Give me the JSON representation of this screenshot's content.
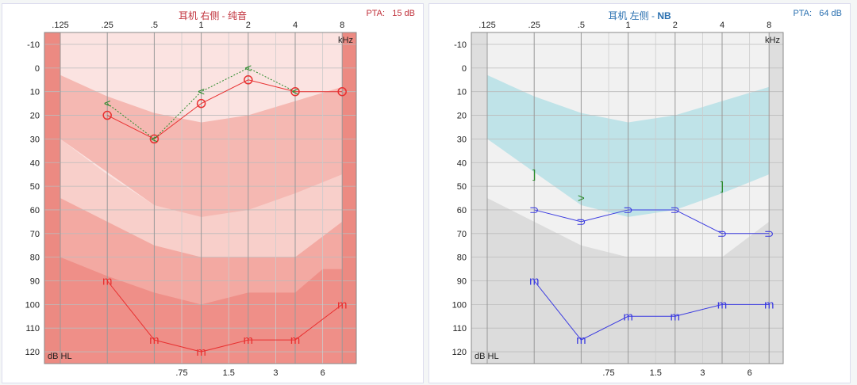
{
  "chart_data": [
    {
      "type": "line",
      "title_prefix": "耳机 右侧 - ",
      "title_mode": "纯音",
      "pta_label": "PTA:",
      "pta_value": "15 dB",
      "accent": "#c0303a",
      "x_ticks": [
        ".125",
        ".25",
        ".5",
        "1",
        "2",
        "4",
        "8"
      ],
      "x_mid_ticks": [
        ".75",
        "1.5",
        "3",
        "6"
      ],
      "x_unit": "kHz",
      "y_unit": "dB HL",
      "y_ticks": [
        -10,
        0,
        10,
        20,
        30,
        40,
        50,
        60,
        70,
        80,
        90,
        100,
        110,
        120
      ],
      "ylim": [
        -10,
        120
      ],
      "series": [
        {
          "name": "air",
          "symbol": "circle",
          "color": "#e83030",
          "x": [
            0.25,
            0.5,
            1,
            2,
            4,
            8
          ],
          "y": [
            20,
            30,
            15,
            5,
            10,
            10
          ]
        },
        {
          "name": "bone",
          "symbol": "<",
          "color": "#2a8a2a",
          "x": [
            0.25,
            0.5,
            1,
            2,
            4
          ],
          "y": [
            15,
            30,
            10,
            0,
            10
          ]
        },
        {
          "name": "ucl",
          "symbol": "m",
          "color": "#e83030",
          "x": [
            0.25,
            0.5,
            1,
            2,
            4,
            8
          ],
          "y": [
            90,
            115,
            120,
            115,
            115,
            100
          ]
        }
      ]
    },
    {
      "type": "line",
      "title_prefix": "耳机 左侧 - ",
      "title_mode": "NB",
      "pta_label": "PTA:",
      "pta_value": "64 dB",
      "accent": "#2a70b0",
      "x_ticks": [
        ".125",
        ".25",
        ".5",
        "1",
        "2",
        "4",
        "8"
      ],
      "x_mid_ticks": [
        ".75",
        "1.5",
        "3",
        "6"
      ],
      "x_unit": "kHz",
      "y_unit": "dB HL",
      "y_ticks": [
        -10,
        0,
        10,
        20,
        30,
        40,
        50,
        60,
        70,
        80,
        90,
        100,
        110,
        120
      ],
      "ylim": [
        -10,
        120
      ],
      "series": [
        {
          "name": "air-masked",
          "symbol": "⊃",
          "color": "#3a3ae0",
          "x": [
            0.25,
            0.5,
            1,
            2,
            4,
            8
          ],
          "y": [
            60,
            65,
            60,
            60,
            70,
            70
          ]
        },
        {
          "name": "bone-masked",
          "symbol": "]",
          "color": "#2a8a2a",
          "x": [
            0.25,
            4
          ],
          "y": [
            45,
            50
          ]
        },
        {
          "name": "bone",
          "symbol": ">",
          "color": "#2a8a2a",
          "x": [
            0.5
          ],
          "y": [
            55
          ]
        },
        {
          "name": "ucl",
          "symbol": "m",
          "color": "#3a3ae0",
          "x": [
            0.25,
            0.5,
            1,
            2,
            4,
            8
          ],
          "y": [
            90,
            115,
            105,
            105,
            100,
            100
          ]
        }
      ]
    }
  ]
}
